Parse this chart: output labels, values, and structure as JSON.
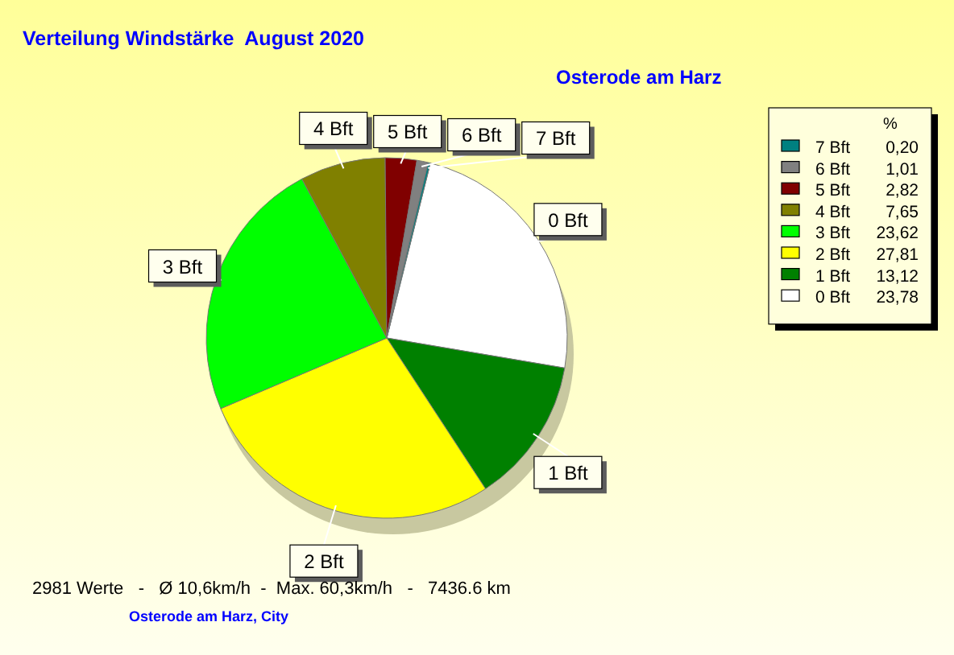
{
  "chart_data": {
    "type": "pie",
    "title": "Verteilung Windstärke  August 2020",
    "subtitle": "Osterode am Harz",
    "legend_title": "%",
    "legend": "right",
    "categories": [
      "0 Bft",
      "1 Bft",
      "2 Bft",
      "3 Bft",
      "4 Bft",
      "5 Bft",
      "6 Bft",
      "7 Bft"
    ],
    "values": [
      23.78,
      13.12,
      27.81,
      23.62,
      7.65,
      2.82,
      1.01,
      0.2
    ],
    "value_labels": [
      "23,78",
      "13,12",
      "27,81",
      "23,62",
      "7,65",
      "2,82",
      "1,01",
      "0,20"
    ],
    "colors": [
      "#ffffff",
      "#008000",
      "#ffff00",
      "#00ff00",
      "#808000",
      "#800000",
      "#808080",
      "#008080"
    ],
    "annotations": [
      "2981 Werte   -   Ø 10,6km/h  -  Max. 60,3km/h   -   7436.6 km",
      "Osterode am Harz, City"
    ]
  }
}
